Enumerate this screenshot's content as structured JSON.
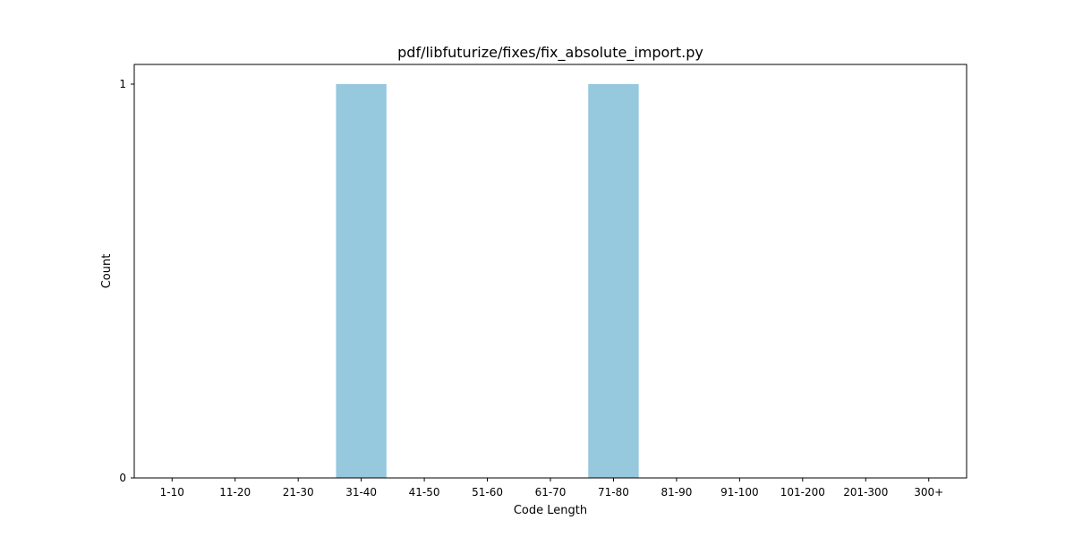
{
  "chart_data": {
    "type": "bar",
    "title": "pdf/libfuturize/fixes/fix_absolute_import.py",
    "xlabel": "Code Length",
    "ylabel": "Count",
    "categories": [
      "1-10",
      "11-20",
      "21-30",
      "31-40",
      "41-50",
      "51-60",
      "61-70",
      "71-80",
      "81-90",
      "91-100",
      "101-200",
      "201-300",
      "300+"
    ],
    "values": [
      0,
      0,
      0,
      1,
      0,
      0,
      0,
      1,
      0,
      0,
      0,
      0,
      0
    ],
    "ylim": [
      0,
      1.05
    ],
    "yticks": [
      0,
      1
    ],
    "bar_color": "#96c8de",
    "grid": false,
    "legend": false
  }
}
